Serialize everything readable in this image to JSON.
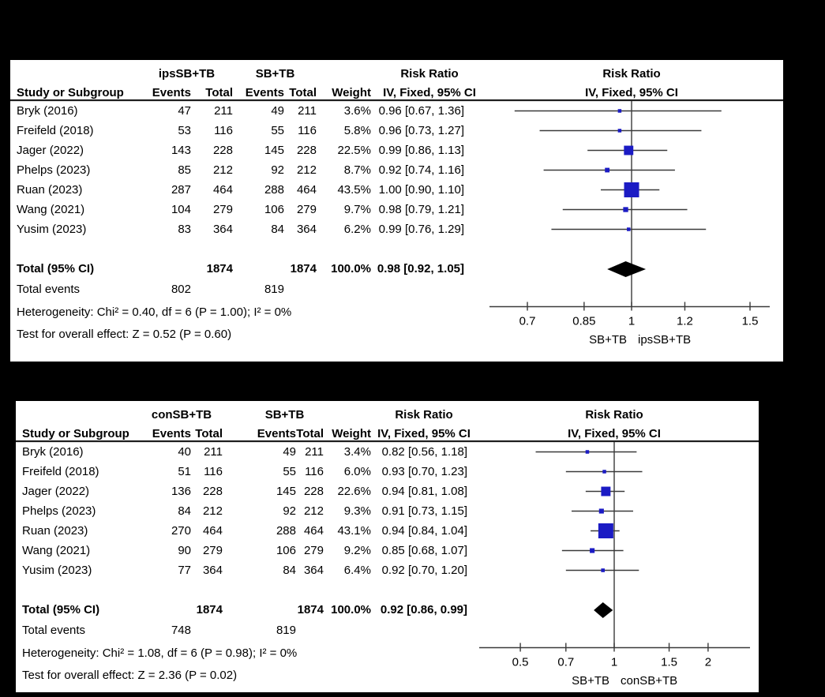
{
  "colors": {
    "page_bg": "#000000",
    "panel_bg": "#ffffff",
    "marker": "#1b1bc4",
    "diamond": "#000000",
    "line": "#3a3a3a",
    "rule": "#1f1f1f",
    "text": "#000000"
  },
  "chart_data": [
    {
      "type": "forest",
      "effect_label": "Risk Ratio",
      "method_label": "IV, Fixed, 95% CI",
      "experimental_group": "ipsSB+TB",
      "control_group": "SB+TB",
      "column_headers": {
        "study": "Study or Subgroup",
        "events": "Events",
        "total": "Total",
        "weight": "Weight"
      },
      "studies": [
        {
          "study": "Bryk (2016)",
          "events1": 47,
          "total1": 211,
          "events2": 49,
          "total2": 211,
          "weight": "3.6%",
          "weight_pct": 3.6,
          "rr": 0.96,
          "ci_low": 0.67,
          "ci_high": 1.36,
          "ci_label": "0.96 [0.67, 1.36]"
        },
        {
          "study": "Freifeld (2018)",
          "events1": 53,
          "total1": 116,
          "events2": 55,
          "total2": 116,
          "weight": "5.8%",
          "weight_pct": 5.8,
          "rr": 0.96,
          "ci_low": 0.73,
          "ci_high": 1.27,
          "ci_label": "0.96 [0.73, 1.27]"
        },
        {
          "study": "Jager (2022)",
          "events1": 143,
          "total1": 228,
          "events2": 145,
          "total2": 228,
          "weight": "22.5%",
          "weight_pct": 22.5,
          "rr": 0.99,
          "ci_low": 0.86,
          "ci_high": 1.13,
          "ci_label": "0.99 [0.86, 1.13]"
        },
        {
          "study": "Phelps (2023)",
          "events1": 85,
          "total1": 212,
          "events2": 92,
          "total2": 212,
          "weight": "8.7%",
          "weight_pct": 8.7,
          "rr": 0.92,
          "ci_low": 0.74,
          "ci_high": 1.16,
          "ci_label": "0.92 [0.74, 1.16]"
        },
        {
          "study": "Ruan (2023)",
          "events1": 287,
          "total1": 464,
          "events2": 288,
          "total2": 464,
          "weight": "43.5%",
          "weight_pct": 43.5,
          "rr": 1.0,
          "ci_low": 0.9,
          "ci_high": 1.1,
          "ci_label": "1.00 [0.90, 1.10]"
        },
        {
          "study": "Wang (2021)",
          "events1": 104,
          "total1": 279,
          "events2": 106,
          "total2": 279,
          "weight": "9.7%",
          "weight_pct": 9.7,
          "rr": 0.98,
          "ci_low": 0.79,
          "ci_high": 1.21,
          "ci_label": "0.98 [0.79, 1.21]"
        },
        {
          "study": "Yusim (2023)",
          "events1": 83,
          "total1": 364,
          "events2": 84,
          "total2": 364,
          "weight": "6.2%",
          "weight_pct": 6.2,
          "rr": 0.99,
          "ci_low": 0.76,
          "ci_high": 1.29,
          "ci_label": "0.99 [0.76, 1.29]"
        }
      ],
      "total": {
        "label": "Total (95% CI)",
        "total1": 1874,
        "total2": 1874,
        "weight": "100.0%",
        "rr": 0.98,
        "ci_low": 0.92,
        "ci_high": 1.05,
        "ci_label": "0.98 [0.92, 1.05]"
      },
      "total_events": {
        "label": "Total events",
        "events1": 802,
        "events2": 819
      },
      "heterogeneity": "Heterogeneity: Chi² = 0.40, df = 6 (P = 1.00); I² = 0%",
      "overall_effect": "Test for overall effect: Z = 0.52 (P = 0.60)",
      "axis": {
        "scale": "log",
        "ticks": [
          0.7,
          0.85,
          1,
          1.2,
          1.5
        ]
      },
      "favours_left": "SB+TB",
      "favours_right": "ipsSB+TB"
    },
    {
      "type": "forest",
      "effect_label": "Risk Ratio",
      "method_label": "IV, Fixed, 95% CI",
      "experimental_group": "conSB+TB",
      "control_group": "SB+TB",
      "column_headers": {
        "study": "Study or Subgroup",
        "events": "Events",
        "total": "Total",
        "weight": "Weight"
      },
      "studies": [
        {
          "study": "Bryk (2016)",
          "events1": 40,
          "total1": 211,
          "events2": 49,
          "total2": 211,
          "weight": "3.4%",
          "weight_pct": 3.4,
          "rr": 0.82,
          "ci_low": 0.56,
          "ci_high": 1.18,
          "ci_label": "0.82 [0.56, 1.18]"
        },
        {
          "study": "Freifeld (2018)",
          "events1": 51,
          "total1": 116,
          "events2": 55,
          "total2": 116,
          "weight": "6.0%",
          "weight_pct": 6.0,
          "rr": 0.93,
          "ci_low": 0.7,
          "ci_high": 1.23,
          "ci_label": "0.93 [0.70, 1.23]"
        },
        {
          "study": "Jager (2022)",
          "events1": 136,
          "total1": 228,
          "events2": 145,
          "total2": 228,
          "weight": "22.6%",
          "weight_pct": 22.6,
          "rr": 0.94,
          "ci_low": 0.81,
          "ci_high": 1.08,
          "ci_label": "0.94 [0.81, 1.08]"
        },
        {
          "study": "Phelps (2023)",
          "events1": 84,
          "total1": 212,
          "events2": 92,
          "total2": 212,
          "weight": "9.3%",
          "weight_pct": 9.3,
          "rr": 0.91,
          "ci_low": 0.73,
          "ci_high": 1.15,
          "ci_label": "0.91 [0.73, 1.15]"
        },
        {
          "study": "Ruan (2023)",
          "events1": 270,
          "total1": 464,
          "events2": 288,
          "total2": 464,
          "weight": "43.1%",
          "weight_pct": 43.1,
          "rr": 0.94,
          "ci_low": 0.84,
          "ci_high": 1.04,
          "ci_label": "0.94 [0.84, 1.04]"
        },
        {
          "study": "Wang (2021)",
          "events1": 90,
          "total1": 279,
          "events2": 106,
          "total2": 279,
          "weight": "9.2%",
          "weight_pct": 9.2,
          "rr": 0.85,
          "ci_low": 0.68,
          "ci_high": 1.07,
          "ci_label": "0.85 [0.68, 1.07]"
        },
        {
          "study": "Yusim (2023)",
          "events1": 77,
          "total1": 364,
          "events2": 84,
          "total2": 364,
          "weight": "6.4%",
          "weight_pct": 6.4,
          "rr": 0.92,
          "ci_low": 0.7,
          "ci_high": 1.2,
          "ci_label": "0.92 [0.70, 1.20]"
        }
      ],
      "total": {
        "label": "Total (95% CI)",
        "total1": 1874,
        "total2": 1874,
        "weight": "100.0%",
        "rr": 0.92,
        "ci_low": 0.86,
        "ci_high": 0.99,
        "ci_label": "0.92 [0.86, 0.99]"
      },
      "total_events": {
        "label": "Total events",
        "events1": 748,
        "events2": 819
      },
      "heterogeneity": "Heterogeneity: Chi² = 1.08, df = 6 (P = 0.98); I² = 0%",
      "overall_effect": "Test for overall effect: Z = 2.36 (P = 0.02)",
      "axis": {
        "scale": "log",
        "ticks": [
          0.5,
          0.7,
          1,
          1.5,
          2
        ]
      },
      "favours_left": "SB+TB",
      "favours_right": "conSB+TB"
    }
  ]
}
